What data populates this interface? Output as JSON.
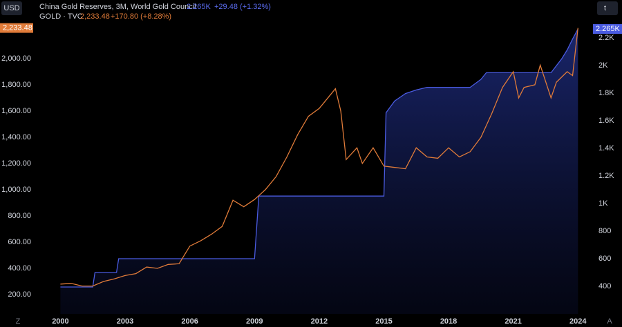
{
  "chart_data": {
    "type": "line",
    "unit_left": "USD",
    "unit_right": "t",
    "xlim": [
      1998.8,
      2024.6
    ],
    "xticks": [
      2000,
      2003,
      2006,
      2009,
      2012,
      2015,
      2018,
      2021,
      2024
    ],
    "ylim": [
      52.6,
      2447
    ],
    "yticks": [
      {
        "value": 200,
        "label": "200.00"
      },
      {
        "value": 400,
        "label": "400.00"
      },
      {
        "value": 600,
        "label": "600.00"
      },
      {
        "value": 800,
        "label": "800.00"
      },
      {
        "value": 1000,
        "label": "1,000.00"
      },
      {
        "value": 1200,
        "label": "1,200.00"
      },
      {
        "value": 1400,
        "label": "1,400.00"
      },
      {
        "value": 1600,
        "label": "1,600.00"
      },
      {
        "value": 1800,
        "label": "1,800.00"
      },
      {
        "value": 2000,
        "label": "2,000.00"
      }
    ],
    "y2lim": [
      200,
      2475
    ],
    "y2ticks": [
      400,
      600,
      800,
      {
        "value": 1000,
        "label": "1K"
      },
      {
        "value": 1200,
        "label": "1.2K"
      },
      {
        "value": 1400,
        "label": "1.4K"
      },
      {
        "value": 1600,
        "label": "1.6K"
      },
      {
        "value": 1800,
        "label": "1.8K"
      },
      {
        "value": 2000,
        "label": "2K"
      },
      {
        "value": 2200,
        "label": "2.2K"
      }
    ],
    "grid": false,
    "corner_labels": [
      "Z",
      "A"
    ],
    "series": [
      {
        "name": "China Gold Reserves, 3M, World Gold Council",
        "axis": "y2",
        "color": "#4a5be0",
        "area": true,
        "last_value_label": "2.265K",
        "change_label": "+29.48 (+1.32%)",
        "x": [
          2000,
          2001.5,
          2001.6,
          2002.6,
          2002.7,
          2009.0,
          2009.2,
          2015.0,
          2015.1,
          2015.5,
          2016,
          2016.5,
          2017,
          2019,
          2019.5,
          2019.75,
          2022.75,
          2023.25,
          2023.5,
          2023.75,
          2024
        ],
        "values": [
          395,
          395,
          500,
          500,
          600,
          600,
          1054,
          1054,
          1658,
          1743,
          1797,
          1823,
          1842,
          1842,
          1900,
          1948,
          1948,
          2050,
          2113,
          2192,
          2265
        ]
      },
      {
        "name": "GOLD · TVC",
        "axis": "y",
        "color": "#e07b39",
        "last_value_label": "2,233.48",
        "change_label": "+170.80 (+8.28%)",
        "x": [
          2000,
          2000.5,
          2001,
          2001.5,
          2002,
          2002.5,
          2003,
          2003.5,
          2004,
          2004.5,
          2005,
          2005.5,
          2006,
          2006.5,
          2007,
          2007.5,
          2008,
          2008.5,
          2009,
          2009.5,
          2010,
          2010.5,
          2011,
          2011.5,
          2012,
          2012.25,
          2012.75,
          2013,
          2013.25,
          2013.75,
          2014,
          2014.5,
          2015,
          2015.5,
          2016,
          2016.5,
          2017,
          2017.5,
          2018,
          2018.5,
          2019,
          2019.5,
          2020,
          2020.5,
          2021,
          2021.25,
          2021.5,
          2022,
          2022.25,
          2022.75,
          2023,
          2023.5,
          2023.75,
          2024
        ],
        "values": [
          280,
          285,
          265,
          265,
          300,
          320,
          345,
          360,
          410,
          400,
          430,
          435,
          570,
          610,
          660,
          720,
          920,
          870,
          925,
          1000,
          1100,
          1250,
          1420,
          1560,
          1620,
          1670,
          1770,
          1600,
          1230,
          1320,
          1200,
          1320,
          1180,
          1170,
          1160,
          1320,
          1250,
          1240,
          1320,
          1250,
          1290,
          1400,
          1580,
          1780,
          1900,
          1700,
          1780,
          1800,
          1950,
          1700,
          1820,
          1900,
          1870,
          2233.48
        ]
      }
    ]
  }
}
